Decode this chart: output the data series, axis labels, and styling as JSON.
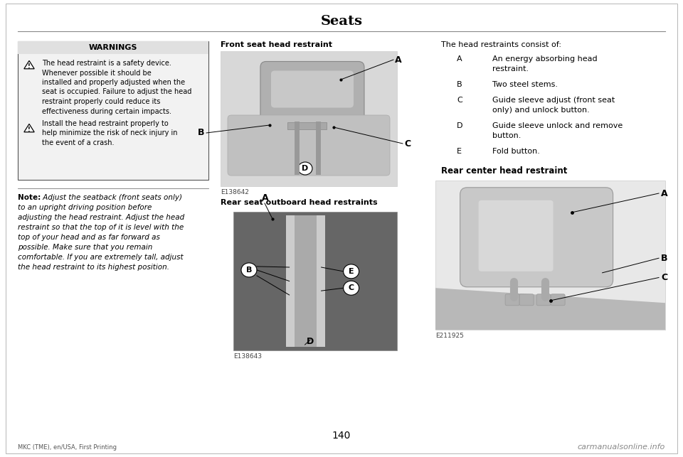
{
  "page_title": "Seats",
  "page_number": "140",
  "footer_left": "MKC (TME), en/USA, First Printing",
  "footer_right": "carmanualsonline.info",
  "bg_color": "#ffffff",
  "warnings_box_bg": "#e0e0e0",
  "warnings_title": "WARNINGS",
  "warning1_lines": [
    "The head restraint is a safety device.",
    "Whenever possible it should be",
    "installed and properly adjusted when the",
    "seat is occupied. Failure to adjust the head",
    "restraint properly could reduce its",
    "effectiveness during certain impacts."
  ],
  "warning2_lines": [
    "Install the head restraint properly to",
    "help minimize the risk of neck injury in",
    "the event of a crash."
  ],
  "note_bold": "Note:",
  "note_italic_lines": [
    " Adjust the seatback (front seats only)",
    "to an upright driving position before",
    "adjusting the head restraint. Adjust the head",
    "restraint so that the top of it is level with the",
    "top of your head and as far forward as",
    "possible. Make sure that you remain",
    "comfortable. If you are extremely tall, adjust",
    "the head restraint to its highest position."
  ],
  "col2_title1": "Front seat head restraint",
  "col2_img1_label": "E138642",
  "col2_title2": "Rear seat outboard head restraints",
  "col2_img2_label": "E138643",
  "col3_intro": "The head restraints consist of:",
  "col3_items": [
    [
      "A",
      "An energy absorbing head\nrestraint."
    ],
    [
      "B",
      "Two steel stems."
    ],
    [
      "C",
      "Guide sleeve adjust (front seat\nonly) and unlock button."
    ],
    [
      "D",
      "Guide sleeve unlock and remove\nbutton."
    ],
    [
      "E",
      "Fold button."
    ]
  ],
  "col3_title2": "Rear center head restraint",
  "col3_img2_label": "E211925"
}
